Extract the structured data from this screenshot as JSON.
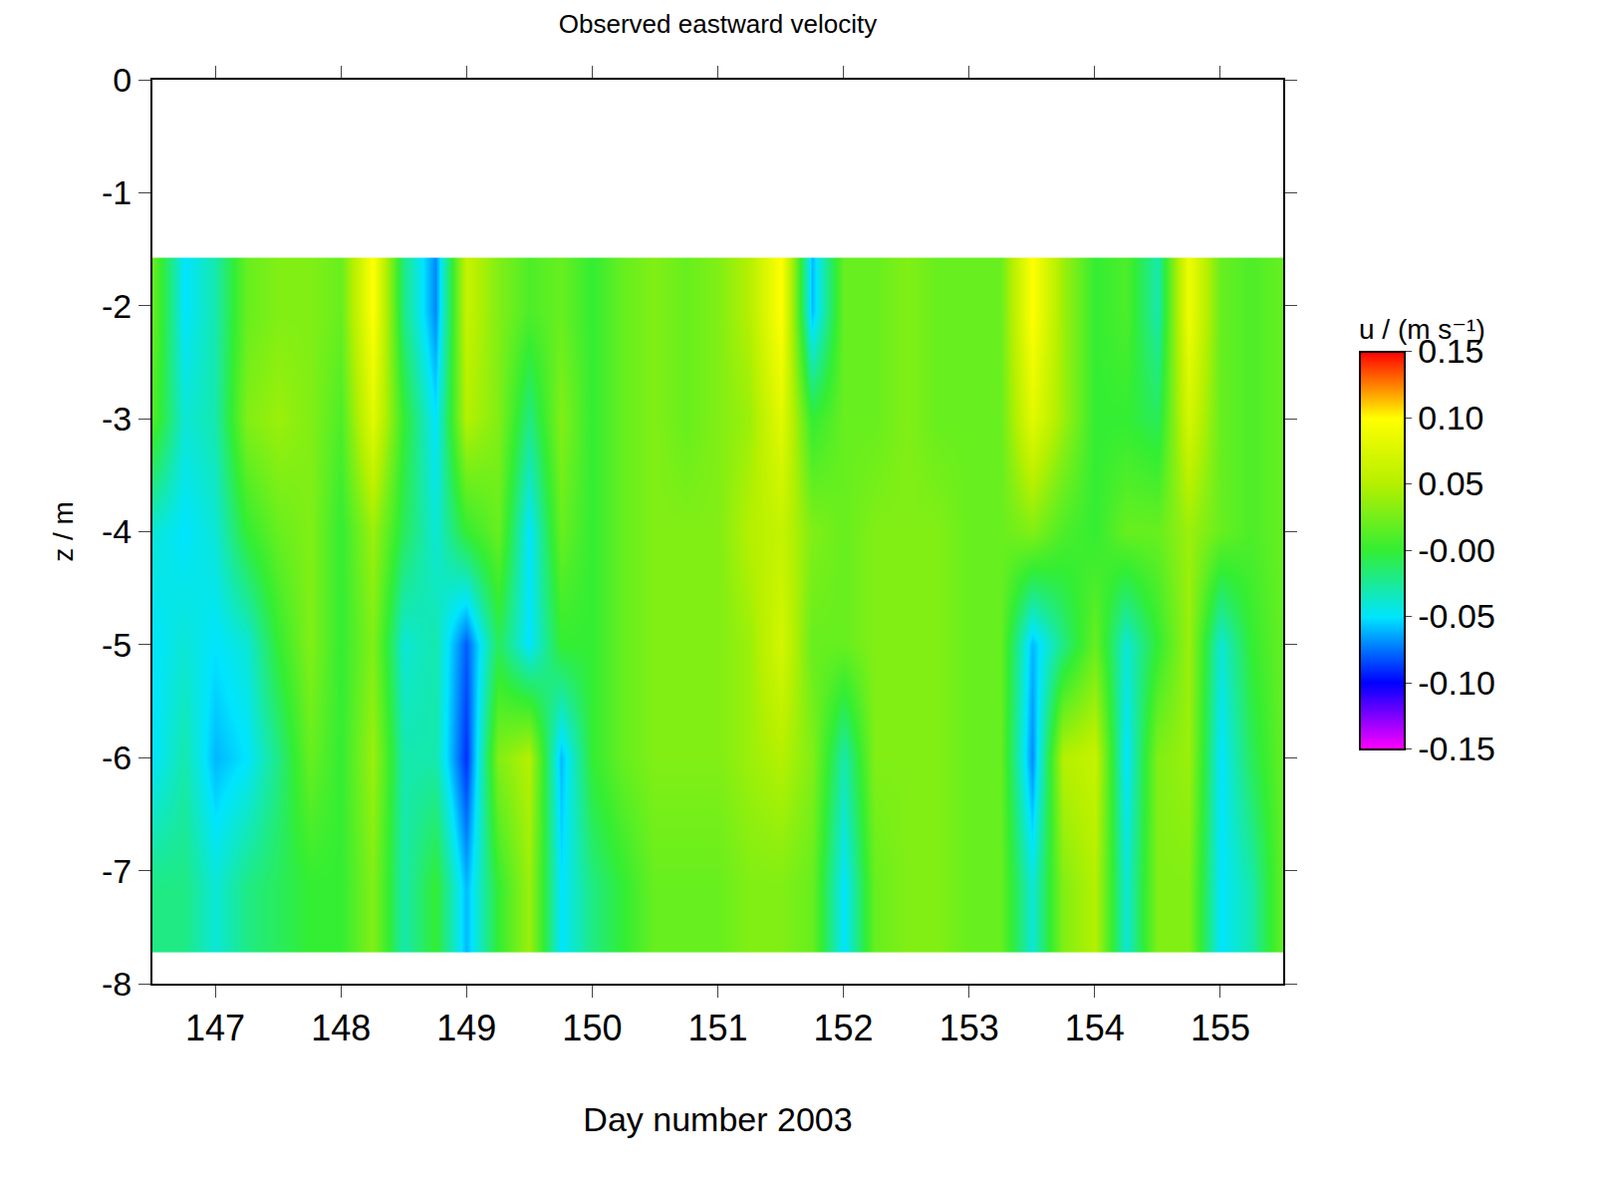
{
  "chart_data": {
    "type": "heatmap",
    "title": "Observed eastward velocity",
    "x_label": "Day number 2003",
    "y_label": "z / m",
    "colorbar_title": "u / (m s⁻¹)",
    "xlim": [
      146.5,
      155.5
    ],
    "ylim": [
      -8,
      0
    ],
    "xticks": [
      147,
      148,
      149,
      150,
      151,
      152,
      153,
      154,
      155
    ],
    "yticks": [
      0,
      -1,
      -2,
      -3,
      -4,
      -5,
      -6,
      -7,
      -8
    ],
    "color_range": [
      -0.15,
      0.15
    ],
    "color_ticks": [
      0.15,
      {
        "value": 0.1,
        "label": "0.10"
      },
      0.05,
      {
        "value": 0,
        "label": "-0.00"
      },
      -0.05,
      {
        "value": -0.1,
        "label": "-0.10"
      },
      -0.15
    ],
    "x": [
      146.5,
      146.75,
      147,
      147.25,
      147.5,
      147.75,
      148,
      148.25,
      148.5,
      148.75,
      149,
      149.25,
      149.5,
      149.75,
      150,
      150.25,
      150.5,
      150.75,
      151,
      151.25,
      151.5,
      151.75,
      152,
      152.25,
      152.5,
      152.75,
      153,
      153.25,
      153.5,
      153.75,
      154,
      154.25,
      154.5,
      154.75,
      155,
      155.25,
      155.5
    ],
    "y": [
      -2.05,
      -3,
      -4,
      -5,
      -6,
      -7.15
    ],
    "z": [
      [
        0.02,
        -0.05,
        -0.03,
        0.02,
        0.03,
        0.03,
        0.02,
        0.1,
        -0.02,
        -0.07,
        0.06,
        0.03,
        0.01,
        0.02,
        0.0,
        0.02,
        0.03,
        0.02,
        0.03,
        0.05,
        0.1,
        -0.06,
        0.02,
        0.02,
        0.03,
        0.02,
        0.02,
        0.02,
        0.1,
        0.04,
        0.0,
        0.01,
        -0.03,
        0.09,
        0.02,
        0.01,
        0.02
      ],
      [
        0.01,
        -0.04,
        -0.03,
        0.03,
        0.04,
        0.03,
        0.01,
        0.08,
        0.0,
        -0.05,
        0.05,
        0.03,
        -0.02,
        0.03,
        0.0,
        0.02,
        0.03,
        0.02,
        0.03,
        0.04,
        0.08,
        0.0,
        0.02,
        0.02,
        0.03,
        0.02,
        0.02,
        0.02,
        0.08,
        0.04,
        0.0,
        0.0,
        -0.01,
        0.07,
        0.02,
        0.01,
        0.02
      ],
      [
        -0.04,
        -0.05,
        -0.04,
        0.0,
        0.02,
        0.03,
        0.0,
        0.04,
        -0.01,
        -0.04,
        0.0,
        0.02,
        -0.05,
        0.02,
        0.0,
        0.02,
        0.03,
        0.03,
        0.03,
        0.05,
        0.06,
        0.03,
        0.02,
        0.03,
        0.03,
        0.03,
        0.02,
        0.02,
        0.03,
        0.01,
        0.0,
        0.02,
        0.02,
        0.04,
        0.02,
        0.01,
        0.02
      ],
      [
        -0.05,
        -0.04,
        -0.05,
        -0.04,
        0.0,
        0.03,
        0.0,
        0.03,
        -0.04,
        -0.03,
        -0.08,
        -0.01,
        -0.05,
        0.0,
        0.0,
        0.02,
        0.03,
        0.03,
        0.03,
        0.04,
        0.07,
        0.02,
        0.02,
        0.03,
        0.03,
        0.03,
        0.02,
        0.02,
        -0.06,
        -0.02,
        0.02,
        -0.04,
        0.0,
        0.04,
        -0.04,
        0.0,
        0.02
      ],
      [
        -0.05,
        -0.03,
        -0.06,
        -0.05,
        -0.02,
        0.02,
        0.0,
        0.04,
        -0.03,
        -0.03,
        -0.09,
        0.03,
        0.05,
        -0.06,
        0.0,
        0.02,
        0.03,
        0.03,
        0.03,
        0.04,
        0.05,
        0.03,
        -0.03,
        0.03,
        0.03,
        0.03,
        0.02,
        0.02,
        -0.07,
        0.05,
        0.06,
        -0.05,
        0.03,
        0.04,
        -0.05,
        -0.01,
        0.02
      ],
      [
        -0.02,
        -0.02,
        -0.04,
        -0.02,
        -0.01,
        0.0,
        0.0,
        0.03,
        -0.03,
        0.0,
        -0.06,
        0.0,
        0.04,
        -0.05,
        -0.02,
        0.0,
        0.02,
        0.02,
        0.02,
        0.03,
        0.03,
        0.02,
        -0.05,
        0.02,
        0.03,
        0.03,
        0.02,
        0.02,
        -0.04,
        0.03,
        0.05,
        -0.04,
        0.03,
        0.03,
        -0.05,
        -0.03,
        0.02
      ]
    ]
  }
}
